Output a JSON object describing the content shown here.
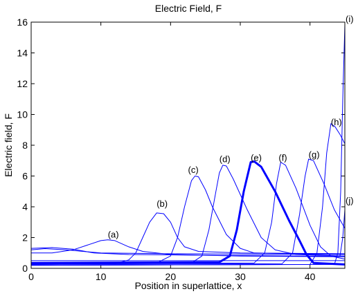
{
  "chart_data": {
    "type": "line",
    "title": "Electric Field, F",
    "xlabel": "Position in superlattice, x",
    "ylabel": "Electric field, F",
    "xlim": [
      0,
      45
    ],
    "ylim": [
      0,
      16
    ],
    "xticks": [
      0,
      10,
      20,
      30,
      40
    ],
    "yticks": [
      0,
      2,
      4,
      6,
      8,
      10,
      12,
      14,
      16
    ],
    "grid": false,
    "line_color": "#0000ff",
    "series": [
      {
        "name": "(a)",
        "label_pos": [
          11,
          2.0
        ],
        "bold": false,
        "points": [
          [
            0,
            1.0
          ],
          [
            3,
            1.0
          ],
          [
            6,
            1.2
          ],
          [
            8,
            1.5
          ],
          [
            10,
            1.8
          ],
          [
            11,
            1.85
          ],
          [
            12,
            1.8
          ],
          [
            14,
            1.4
          ],
          [
            16,
            1.1
          ],
          [
            20,
            0.9
          ],
          [
            30,
            0.8
          ],
          [
            45,
            0.75
          ]
        ]
      },
      {
        "name": "(b)",
        "label_pos": [
          18,
          4.0
        ],
        "bold": false,
        "points": [
          [
            0,
            0.25
          ],
          [
            12,
            0.3
          ],
          [
            14,
            0.55
          ],
          [
            15,
            1.0
          ],
          [
            16,
            2.0
          ],
          [
            17,
            3.0
          ],
          [
            18,
            3.6
          ],
          [
            19,
            3.55
          ],
          [
            20,
            3.0
          ],
          [
            21,
            2.0
          ],
          [
            22,
            1.4
          ],
          [
            24,
            1.1
          ],
          [
            30,
            1.0
          ],
          [
            45,
            0.95
          ]
        ]
      },
      {
        "name": "(c)",
        "label_pos": [
          22.5,
          6.2
        ],
        "bold": false,
        "points": [
          [
            0,
            0.3
          ],
          [
            18,
            0.35
          ],
          [
            20,
            0.8
          ],
          [
            21,
            2.0
          ],
          [
            22,
            4.0
          ],
          [
            23,
            5.7
          ],
          [
            23.5,
            6.0
          ],
          [
            24,
            5.95
          ],
          [
            25,
            5.1
          ],
          [
            26,
            4.0
          ],
          [
            28,
            2.2
          ],
          [
            30,
            1.3
          ],
          [
            32,
            1.0
          ],
          [
            45,
            0.9
          ]
        ]
      },
      {
        "name": "(d)",
        "label_pos": [
          27,
          6.9
        ],
        "bold": false,
        "points": [
          [
            0,
            0.3
          ],
          [
            23,
            0.35
          ],
          [
            24.5,
            0.8
          ],
          [
            25.5,
            2.5
          ],
          [
            26.5,
            5.0
          ],
          [
            27,
            6.2
          ],
          [
            27.5,
            6.7
          ],
          [
            28,
            6.65
          ],
          [
            29,
            5.8
          ],
          [
            31,
            3.8
          ],
          [
            33,
            2.0
          ],
          [
            35,
            1.2
          ],
          [
            38,
            0.9
          ],
          [
            45,
            0.8
          ]
        ]
      },
      {
        "name": "(e)",
        "label_pos": [
          31.5,
          7.0
        ],
        "bold": true,
        "points": [
          [
            0,
            0.35
          ],
          [
            27,
            0.4
          ],
          [
            28.5,
            0.8
          ],
          [
            29.5,
            2.5
          ],
          [
            30.5,
            5.0
          ],
          [
            31.5,
            6.9
          ],
          [
            32,
            6.95
          ],
          [
            33,
            6.6
          ],
          [
            35,
            5.0
          ],
          [
            37,
            3.1
          ],
          [
            38.5,
            1.8
          ],
          [
            39.5,
            0.9
          ],
          [
            40.5,
            0.35
          ],
          [
            45,
            0.25
          ]
        ]
      },
      {
        "name": "(f)",
        "label_pos": [
          35.5,
          7.0
        ],
        "bold": false,
        "points": [
          [
            0,
            0.3
          ],
          [
            32,
            0.35
          ],
          [
            33.5,
            1.0
          ],
          [
            34.5,
            3.0
          ],
          [
            35.2,
            5.5
          ],
          [
            35.8,
            6.9
          ],
          [
            36.5,
            6.7
          ],
          [
            38,
            5.2
          ],
          [
            40,
            2.8
          ],
          [
            41.5,
            1.4
          ],
          [
            43,
            0.8
          ],
          [
            45,
            0.6
          ]
        ]
      },
      {
        "name": "(g)",
        "label_pos": [
          39.8,
          7.2
        ],
        "bold": false,
        "points": [
          [
            0,
            0.25
          ],
          [
            36,
            0.3
          ],
          [
            37.5,
            1.0
          ],
          [
            38.5,
            3.5
          ],
          [
            39.3,
            6.0
          ],
          [
            39.8,
            7.1
          ],
          [
            40.5,
            7.0
          ],
          [
            42,
            5.5
          ],
          [
            43.5,
            3.8
          ],
          [
            45,
            2.6
          ]
        ]
      },
      {
        "name": "(h)",
        "label_pos": [
          43,
          9.3
        ],
        "bold": false,
        "points": [
          [
            0,
            0.2
          ],
          [
            40,
            0.25
          ],
          [
            41,
            1.0
          ],
          [
            41.8,
            4.0
          ],
          [
            42.4,
            7.5
          ],
          [
            43,
            9.4
          ],
          [
            43.6,
            9.2
          ],
          [
            44.3,
            8.7
          ],
          [
            45,
            8.1
          ]
        ]
      },
      {
        "name": "(i)",
        "label_pos": [
          45.1,
          16.0
        ],
        "bold": false,
        "points": [
          [
            0,
            0.2
          ],
          [
            43.5,
            0.25
          ],
          [
            44,
            1.0
          ],
          [
            44.4,
            5.0
          ],
          [
            44.7,
            11.0
          ],
          [
            45,
            15.8
          ]
        ]
      },
      {
        "name": "(j)",
        "label_pos": [
          45.1,
          4.2
        ],
        "bold": false,
        "points": [
          [
            0,
            1.3
          ],
          [
            3,
            1.35
          ],
          [
            6,
            1.25
          ],
          [
            9,
            1.0
          ],
          [
            14,
            0.9
          ],
          [
            25,
            0.85
          ],
          [
            40,
            0.8
          ],
          [
            44.3,
            0.8
          ],
          [
            44.7,
            2.0
          ],
          [
            45,
            3.8
          ]
        ]
      }
    ],
    "extra_lines": [
      {
        "points": [
          [
            0,
            0.5
          ],
          [
            45,
            0.5
          ]
        ]
      },
      {
        "points": [
          [
            0,
            1.2
          ],
          [
            2,
            1.28
          ],
          [
            5,
            1.2
          ],
          [
            10,
            1.0
          ],
          [
            20,
            0.95
          ],
          [
            45,
            0.9
          ]
        ]
      }
    ]
  }
}
